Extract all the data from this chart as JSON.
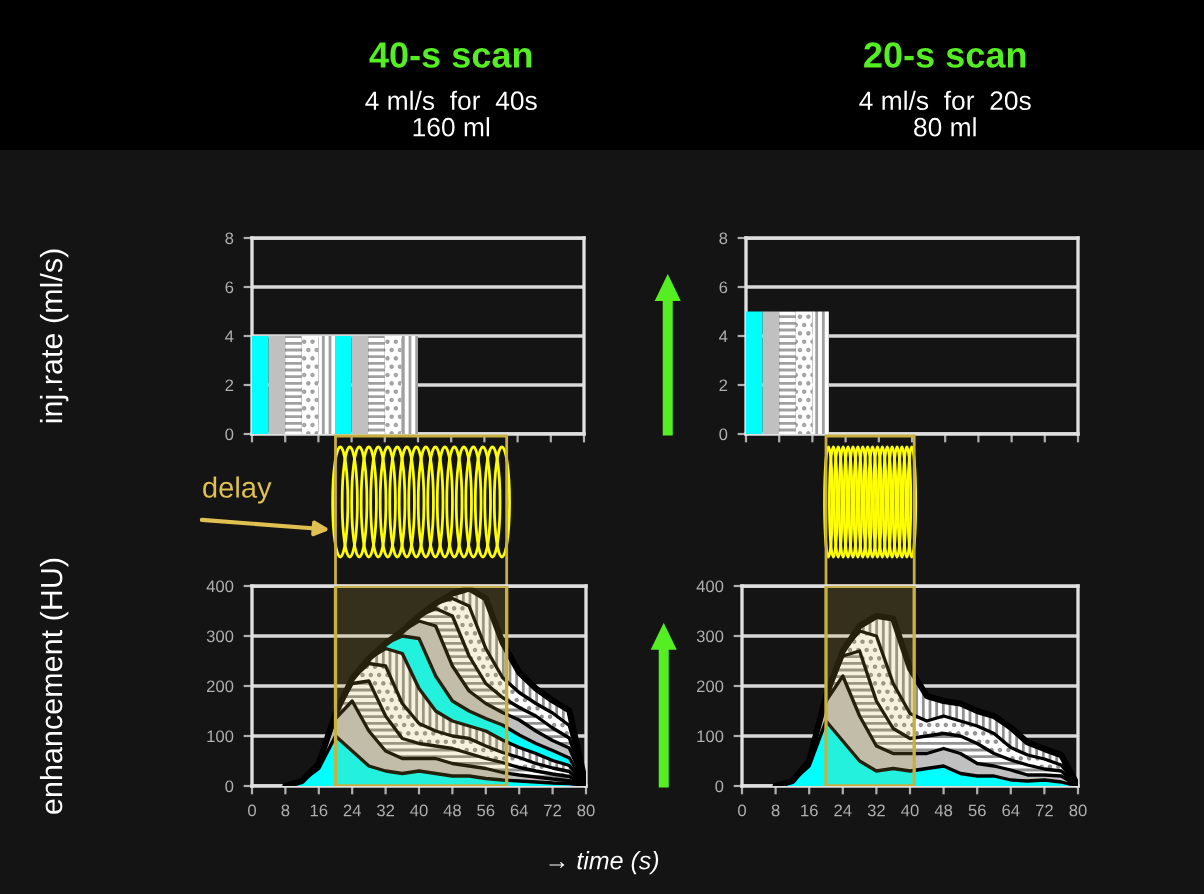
{
  "chart_data": [
    {
      "type": "bar",
      "title": "40-s scan",
      "subtitle": "4 ml/s  for  40s\n160 ml",
      "ylabel": "inj.rate (ml/s)",
      "x": [
        2,
        6,
        10,
        14,
        18,
        22,
        26,
        30,
        34,
        38
      ],
      "values": [
        4,
        4,
        4,
        4,
        4,
        4,
        4,
        4,
        4,
        4
      ],
      "colors": [
        "#00ffff",
        "#c0c0c0",
        "#ffffff",
        "#ffffff",
        "#ffffff",
        "#00ffff",
        "#c0c0c0",
        "#ffffff",
        "#ffffff",
        "#ffffff"
      ],
      "xlim": [
        0,
        80
      ],
      "ylim": [
        0,
        8
      ],
      "yticks": [
        0,
        2,
        4,
        6,
        8
      ],
      "xticks": [
        {
          "value": 0,
          "label": null
        },
        {
          "value": 8,
          "label": null
        },
        {
          "value": 16,
          "label": null
        },
        {
          "value": 24,
          "label": null
        },
        {
          "value": 32,
          "label": null
        },
        {
          "value": 40,
          "label": null
        },
        {
          "value": 48,
          "label": null
        },
        {
          "value": 56,
          "label": null
        },
        {
          "value": 64,
          "label": null
        },
        {
          "value": 72,
          "label": null
        },
        {
          "value": 80,
          "label": null
        }
      ],
      "tick_labels": "y",
      "grid": "y"
    },
    {
      "type": "bar",
      "title": "20-s scan",
      "subtitle": "4 ml/s  for  20s\n80 ml",
      "x": [
        2,
        6,
        10,
        14,
        18
      ],
      "values": [
        5,
        5,
        5,
        5,
        5
      ],
      "colors": [
        "#00ffff",
        "#c0c0c0",
        "#ffffff",
        "#ffffff",
        "#ffffff"
      ],
      "xlim": [
        0,
        80
      ],
      "ylim": [
        0,
        8
      ],
      "yticks": [
        0,
        2,
        4,
        6,
        8
      ],
      "xticks": [
        {
          "value": 0,
          "label": null
        },
        {
          "value": 8,
          "label": null
        },
        {
          "value": 16,
          "label": null
        },
        {
          "value": 24,
          "label": null
        },
        {
          "value": 32,
          "label": null
        },
        {
          "value": 40,
          "label": null
        },
        {
          "value": 48,
          "label": null
        },
        {
          "value": 56,
          "label": null
        },
        {
          "value": 64,
          "label": null
        },
        {
          "value": 72,
          "label": null
        },
        {
          "value": 80,
          "label": null
        }
      ],
      "tick_labels": "y",
      "grid": "y"
    },
    {
      "type": "area",
      "stacked": true,
      "ylabel": "enhancement (HU)",
      "xlabel": "→ time (s)",
      "annotations": [
        "delay"
      ],
      "x": [
        8,
        12,
        16,
        20,
        24,
        28,
        32,
        36,
        40,
        44,
        48,
        52,
        56,
        60,
        64,
        68,
        72,
        76,
        80
      ],
      "series": [
        {
          "color": "#00ffff",
          "values": [
            0,
            10,
            35,
            100,
            70,
            40,
            30,
            25,
            30,
            25,
            20,
            20,
            15,
            12,
            10,
            8,
            6,
            5,
            0
          ]
        },
        {
          "color": "#c0c0c0",
          "values": [
            0,
            0,
            10,
            35,
            100,
            70,
            40,
            30,
            25,
            30,
            25,
            20,
            20,
            15,
            12,
            10,
            8,
            6,
            0
          ]
        },
        {
          "color": "#ffffff",
          "values": [
            0,
            0,
            0,
            10,
            35,
            100,
            70,
            40,
            30,
            25,
            30,
            25,
            20,
            20,
            15,
            12,
            10,
            8,
            0
          ]
        },
        {
          "color": "#ffffff",
          "values": [
            0,
            0,
            0,
            0,
            10,
            35,
            100,
            70,
            40,
            30,
            25,
            30,
            25,
            20,
            20,
            15,
            12,
            10,
            0
          ]
        },
        {
          "color": "#ffffff",
          "values": [
            0,
            0,
            0,
            0,
            0,
            10,
            35,
            100,
            70,
            40,
            30,
            25,
            30,
            25,
            20,
            20,
            15,
            12,
            0
          ]
        },
        {
          "color": "#00ffff",
          "values": [
            0,
            0,
            0,
            0,
            0,
            0,
            10,
            35,
            100,
            70,
            40,
            30,
            25,
            30,
            25,
            20,
            20,
            15,
            0
          ]
        },
        {
          "color": "#c0c0c0",
          "values": [
            0,
            0,
            0,
            0,
            0,
            0,
            0,
            10,
            35,
            100,
            70,
            40,
            30,
            25,
            30,
            25,
            20,
            20,
            0
          ]
        },
        {
          "color": "#ffffff",
          "values": [
            0,
            0,
            0,
            0,
            0,
            0,
            0,
            0,
            10,
            35,
            100,
            70,
            40,
            30,
            25,
            30,
            25,
            20,
            0
          ]
        },
        {
          "color": "#ffffff",
          "values": [
            0,
            0,
            0,
            0,
            0,
            0,
            0,
            0,
            0,
            10,
            35,
            100,
            70,
            40,
            30,
            25,
            30,
            25,
            0
          ]
        },
        {
          "color": "#ffffff",
          "values": [
            0,
            0,
            0,
            0,
            0,
            0,
            0,
            0,
            0,
            0,
            10,
            35,
            100,
            70,
            40,
            30,
            25,
            30,
            0
          ]
        }
      ],
      "bands": [
        {
          "axis": "x",
          "from": 20,
          "to": 61,
          "color": "#c8b040"
        }
      ],
      "xlim": [
        0,
        80
      ],
      "ylim": [
        0,
        400
      ],
      "xticks": [
        0,
        8,
        16,
        24,
        32,
        40,
        48,
        56,
        64,
        72,
        80
      ],
      "yticks": [
        0,
        100,
        200,
        300,
        400
      ],
      "grid": "y"
    },
    {
      "type": "area",
      "stacked": true,
      "x": [
        8,
        12,
        16,
        20,
        24,
        28,
        32,
        36,
        40,
        44,
        48,
        52,
        56,
        60,
        64,
        68,
        72,
        76,
        80
      ],
      "series": [
        {
          "color": "#00ffff",
          "values": [
            0,
            10,
            40,
            130,
            90,
            50,
            30,
            35,
            30,
            35,
            40,
            25,
            20,
            20,
            12,
            10,
            12,
            8,
            0
          ]
        },
        {
          "color": "#c0c0c0",
          "values": [
            0,
            0,
            10,
            40,
            130,
            90,
            50,
            30,
            35,
            30,
            35,
            40,
            25,
            20,
            20,
            12,
            10,
            12,
            0
          ]
        },
        {
          "color": "#ffffff",
          "values": [
            0,
            0,
            0,
            10,
            40,
            130,
            90,
            50,
            30,
            35,
            30,
            35,
            40,
            25,
            20,
            20,
            12,
            10,
            0
          ]
        },
        {
          "color": "#ffffff",
          "values": [
            0,
            0,
            0,
            0,
            10,
            40,
            130,
            90,
            50,
            30,
            35,
            30,
            35,
            40,
            25,
            20,
            20,
            12,
            0
          ]
        },
        {
          "color": "#ffffff",
          "values": [
            0,
            0,
            0,
            0,
            0,
            10,
            40,
            130,
            90,
            50,
            30,
            35,
            30,
            35,
            40,
            25,
            20,
            20,
            0
          ]
        }
      ],
      "bands": [
        {
          "axis": "x",
          "from": 20,
          "to": 41,
          "color": "#c8b040"
        }
      ],
      "xlim": [
        0,
        80
      ],
      "ylim": [
        0,
        400
      ],
      "xticks": [
        0,
        8,
        16,
        24,
        32,
        40,
        48,
        56,
        64,
        72,
        80
      ],
      "yticks": [
        0,
        100,
        200,
        300,
        400
      ],
      "grid": "y"
    }
  ]
}
